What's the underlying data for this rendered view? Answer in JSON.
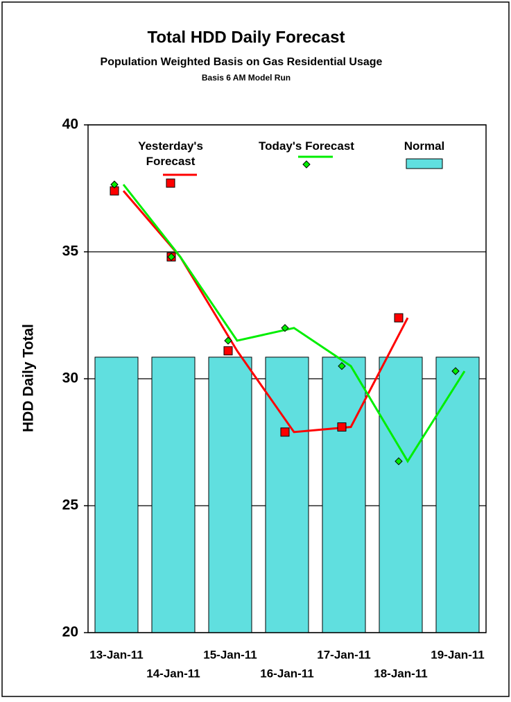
{
  "chart_data": {
    "type": "bar",
    "title": "Total HDD Daily Forecast",
    "subtitle": "Population Weighted Basis on Gas Residential Usage",
    "note": "Basis 6 AM Model Run",
    "y_label": "HDD Daily Total",
    "categories": [
      "13-Jan-11",
      "14-Jan-11",
      "15-Jan-11",
      "16-Jan-11",
      "17-Jan-11",
      "18-Jan-11",
      "19-Jan-11"
    ],
    "ylim": [
      20,
      40
    ],
    "yticks": [
      20,
      25,
      30,
      35,
      40
    ],
    "grid": true,
    "series": [
      {
        "name": "Yesterday's Forecast",
        "type": "line",
        "color": "#ff0000",
        "marker": "square",
        "values": [
          37.4,
          34.8,
          31.1,
          27.9,
          28.1,
          32.4,
          null
        ]
      },
      {
        "name": "Today's Forecast",
        "type": "line",
        "color": "#00ee00",
        "marker": "diamond",
        "values": [
          37.65,
          34.8,
          31.5,
          32.0,
          30.5,
          26.75,
          30.3
        ]
      },
      {
        "name": "Normal",
        "type": "bar",
        "color": "#60dfdf",
        "values": [
          30.85,
          30.85,
          30.85,
          30.85,
          30.85,
          30.85,
          30.85
        ]
      }
    ]
  }
}
